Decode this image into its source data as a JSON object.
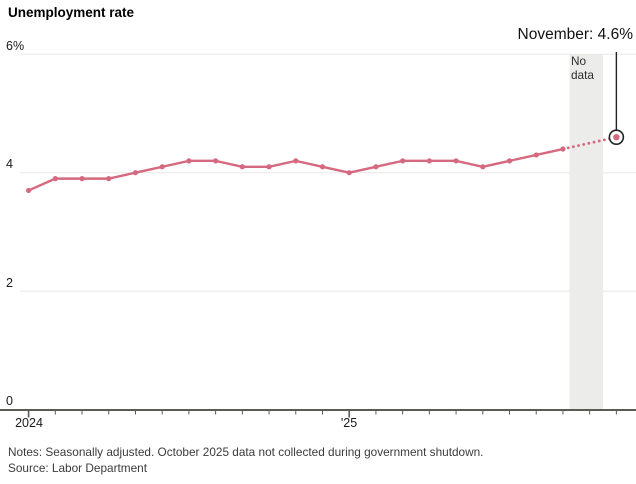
{
  "title": "Unemployment rate",
  "annotation": {
    "label": "November: 4.6%"
  },
  "no_data_label": {
    "line1": "No",
    "line2": "data"
  },
  "notes": {
    "line1": "Notes: Seasonally adjusted. October 2025 data not collected during government shutdown.",
    "line2": "Source: Labor Department"
  },
  "colors": {
    "line": "#d5697f",
    "axis": "#5c5b53",
    "grid": "#e8e8e6",
    "band": "#ececea",
    "leader": "#222222",
    "end_circle_stroke": "#222222",
    "end_circle_fill": "#ffffff"
  },
  "chart_data": {
    "type": "line",
    "title": "Unemployment rate",
    "unit": "%",
    "grid": "horizontal",
    "ylim": [
      0,
      6
    ],
    "y_ticks": [
      6,
      4,
      2,
      0
    ],
    "y_tick_labels": [
      "6%",
      "4",
      "2",
      "0"
    ],
    "x_tick_labels": [
      "2024",
      "'25"
    ],
    "months": [
      "Jan 2024",
      "Feb 2024",
      "Mar 2024",
      "Apr 2024",
      "May 2024",
      "Jun 2024",
      "Jul 2024",
      "Aug 2024",
      "Sep 2024",
      "Oct 2024",
      "Nov 2024",
      "Dec 2024",
      "Jan 2025",
      "Feb 2025",
      "Mar 2025",
      "Apr 2025",
      "May 2025",
      "Jun 2025",
      "Jul 2025",
      "Aug 2025",
      "Sep 2025",
      "Oct 2025",
      "Nov 2025"
    ],
    "values": [
      3.7,
      3.9,
      3.9,
      3.9,
      4.0,
      4.1,
      4.2,
      4.2,
      4.1,
      4.1,
      4.2,
      4.1,
      4.0,
      4.1,
      4.2,
      4.2,
      4.2,
      4.1,
      4.2,
      4.3,
      4.4,
      null,
      4.6
    ],
    "solid_last_index": 20,
    "no_data_month": "Oct 2025",
    "final_point": {
      "month": "Nov 2025",
      "label": "November",
      "value": 4.6
    },
    "annotation": "November: 4.6%",
    "notes": "Seasonally adjusted. October 2025 data not collected during government shutdown.",
    "source": "Labor Department"
  }
}
